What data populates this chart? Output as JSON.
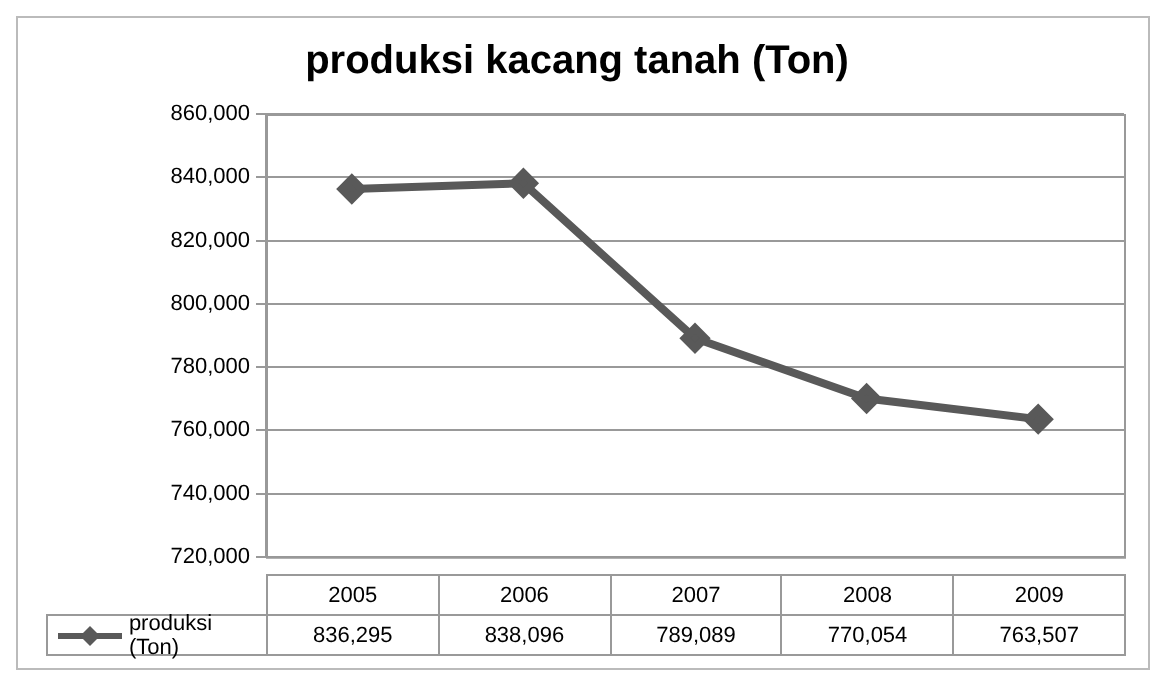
{
  "chart_data": {
    "type": "line",
    "title": "produksi kacang tanah (Ton)",
    "categories": [
      "2005",
      "2006",
      "2007",
      "2008",
      "2009"
    ],
    "series": [
      {
        "name": "produksi (Ton)",
        "color": "#595959",
        "values": [
          836295,
          838096,
          789089,
          770054,
          763507
        ],
        "value_labels": [
          "836,295",
          "838,096",
          "789,089",
          "770,054",
          "763,507"
        ]
      }
    ],
    "ylim": [
      720000,
      860000
    ],
    "yticks": [
      {
        "value": 720000,
        "label": "720,000"
      },
      {
        "value": 740000,
        "label": "740,000"
      },
      {
        "value": 760000,
        "label": "760,000"
      },
      {
        "value": 780000,
        "label": "780,000"
      },
      {
        "value": 800000,
        "label": "800,000"
      },
      {
        "value": 820000,
        "label": "820,000"
      },
      {
        "value": 840000,
        "label": "840,000"
      },
      {
        "value": 860000,
        "label": "860,000"
      }
    ],
    "grid": "y",
    "legend": "bottom",
    "marker": "diamond",
    "line_style": "solid"
  }
}
